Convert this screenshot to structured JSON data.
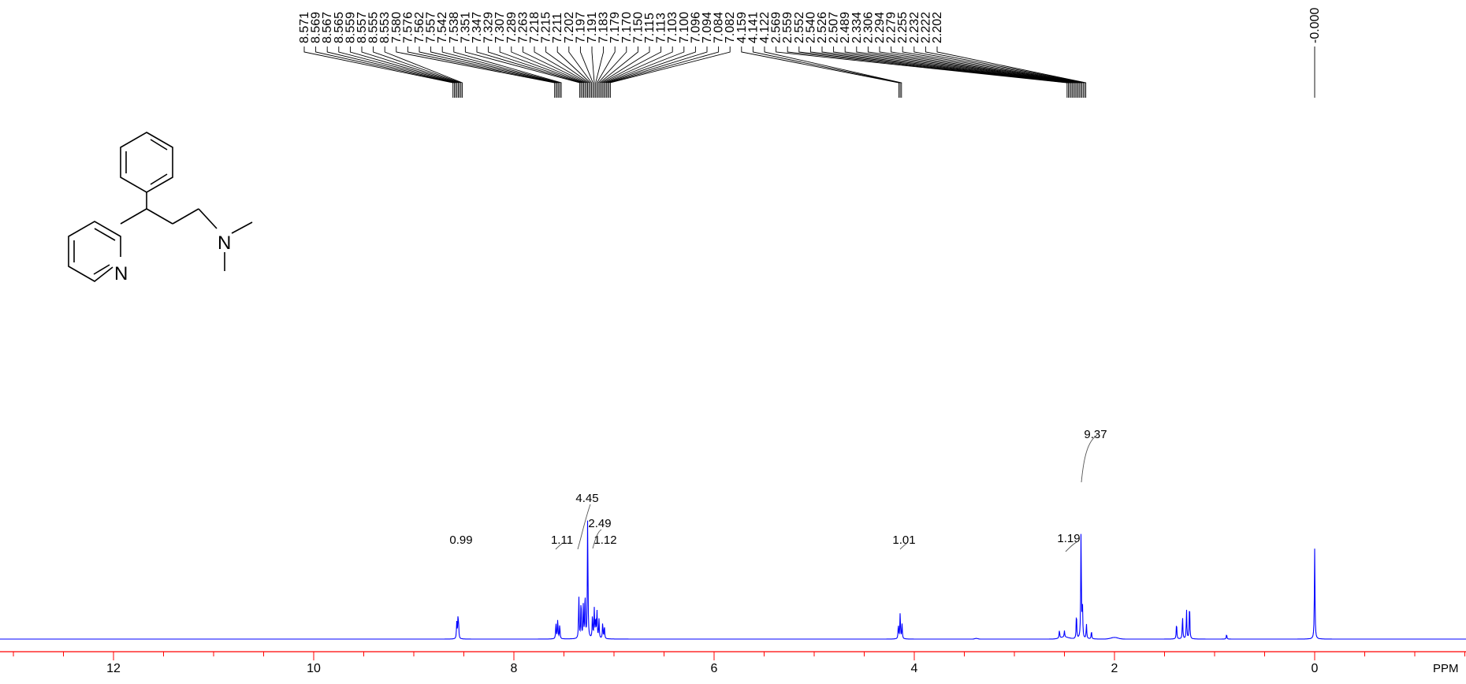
{
  "chart_data": {
    "type": "line",
    "xlabel": "PPM",
    "xlim": [
      13.2,
      -1.85
    ],
    "x_reversed": true,
    "axis_color": "#ff0000",
    "spectrum_color": "#0000ff",
    "ticks": [
      12,
      10,
      8,
      6,
      4,
      2,
      0
    ],
    "tick_labels": [
      "12",
      "10",
      "8",
      "6",
      "4",
      "2",
      "0"
    ],
    "peak_labels": [
      "8.571",
      "8.569",
      "8.567",
      "8.565",
      "8.559",
      "8.557",
      "8.555",
      "8.553",
      "7.580",
      "7.576",
      "7.562",
      "7.557",
      "7.542",
      "7.538",
      "7.351",
      "7.347",
      "7.329",
      "7.307",
      "7.289",
      "7.263",
      "7.218",
      "7.215",
      "7.211",
      "7.202",
      "7.197",
      "7.191",
      "7.183",
      "7.179",
      "7.170",
      "7.150",
      "7.115",
      "7.113",
      "7.103",
      "7.100",
      "7.096",
      "7.094",
      "7.084",
      "7.082",
      "4.159",
      "4.141",
      "4.122",
      "2.569",
      "2.559",
      "2.552",
      "2.540",
      "2.526",
      "2.507",
      "2.489",
      "2.334",
      "2.306",
      "2.294",
      "2.279",
      "2.255",
      "2.232",
      "2.222",
      "2.202",
      "-0.000"
    ],
    "peak_groups": [
      {
        "labels": [
          "8.571",
          "8.569",
          "8.567",
          "8.565",
          "8.559",
          "8.557",
          "8.555",
          "8.553"
        ],
        "tip": 8.562
      },
      {
        "labels": [
          "7.580",
          "7.576",
          "7.562",
          "7.557",
          "7.542",
          "7.538"
        ],
        "tip": 7.56
      },
      {
        "labels": [
          "7.351",
          "7.347",
          "7.329",
          "7.307",
          "7.289",
          "7.263"
        ],
        "tip": 7.31
      },
      {
        "labels": [
          "7.218",
          "7.215",
          "7.211",
          "7.202",
          "7.197",
          "7.191",
          "7.183",
          "7.179",
          "7.170",
          "7.150",
          "7.115",
          "7.113",
          "7.103",
          "7.100",
          "7.096",
          "7.094",
          "7.084",
          "7.082"
        ],
        "tip": 7.15
      },
      {
        "labels": [
          "4.159",
          "4.141",
          "4.122"
        ],
        "tip": 4.141
      },
      {
        "labels": [
          "2.569",
          "2.559",
          "2.552",
          "2.540",
          "2.526",
          "2.507",
          "2.489",
          "2.334",
          "2.306",
          "2.294",
          "2.279",
          "2.255",
          "2.232",
          "2.222",
          "2.202"
        ],
        "tip": 2.38
      },
      {
        "labels": [
          "-0.000"
        ],
        "tip": 0.0
      }
    ],
    "integrals": [
      {
        "label": "0.99",
        "ppm": 8.56
      },
      {
        "label": "1.11",
        "ppm": 7.56
      },
      {
        "label": "4.45",
        "ppm": 7.31
      },
      {
        "label": "2.49",
        "ppm": 7.2
      },
      {
        "label": "1.12",
        "ppm": 7.12
      },
      {
        "label": "1.01",
        "ppm": 4.14
      },
      {
        "label": "1.19",
        "ppm": 2.5
      },
      {
        "label": "9.37",
        "ppm": 2.3
      }
    ],
    "series": [
      {
        "peaks": [
          {
            "ppm": 8.571,
            "h": 0.1
          },
          {
            "ppm": 8.559,
            "h": 0.11
          },
          {
            "ppm": 8.553,
            "h": 0.09
          },
          {
            "ppm": 7.58,
            "h": 0.1
          },
          {
            "ppm": 7.562,
            "h": 0.12
          },
          {
            "ppm": 7.542,
            "h": 0.09
          },
          {
            "ppm": 7.351,
            "h": 0.26
          },
          {
            "ppm": 7.329,
            "h": 0.24
          },
          {
            "ppm": 7.307,
            "h": 0.2
          },
          {
            "ppm": 7.289,
            "h": 0.28
          },
          {
            "ppm": 7.263,
            "h": 0.76
          },
          {
            "ppm": 7.215,
            "h": 0.15
          },
          {
            "ppm": 7.197,
            "h": 0.18
          },
          {
            "ppm": 7.183,
            "h": 0.12
          },
          {
            "ppm": 7.17,
            "h": 0.17
          },
          {
            "ppm": 7.15,
            "h": 0.12
          },
          {
            "ppm": 7.113,
            "h": 0.1
          },
          {
            "ppm": 7.096,
            "h": 0.08
          },
          {
            "ppm": 4.159,
            "h": 0.09
          },
          {
            "ppm": 4.141,
            "h": 0.16
          },
          {
            "ppm": 4.122,
            "h": 0.09
          },
          {
            "ppm": 2.55,
            "h": 0.05
          },
          {
            "ppm": 2.5,
            "h": 0.04
          },
          {
            "ppm": 2.38,
            "h": 0.16
          },
          {
            "ppm": 2.334,
            "h": 0.66
          },
          {
            "ppm": 2.32,
            "h": 0.2
          },
          {
            "ppm": 2.28,
            "h": 0.09
          },
          {
            "ppm": 2.23,
            "h": 0.05
          },
          {
            "ppm": 1.38,
            "h": 0.1
          },
          {
            "ppm": 1.32,
            "h": 0.14
          },
          {
            "ppm": 1.28,
            "h": 0.18
          },
          {
            "ppm": 1.25,
            "h": 0.22
          },
          {
            "ppm": 0.88,
            "h": 0.03
          },
          {
            "ppm": 0.0,
            "h": 0.56
          }
        ]
      }
    ]
  }
}
